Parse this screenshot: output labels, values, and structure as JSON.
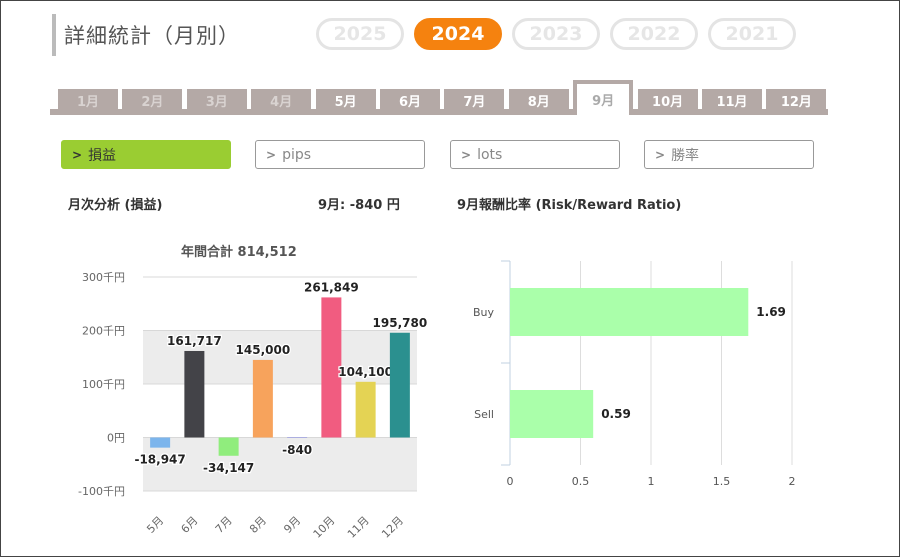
{
  "header": {
    "title": "詳細統計（月別）"
  },
  "years": [
    {
      "label": "2025",
      "active": false
    },
    {
      "label": "2024",
      "active": true
    },
    {
      "label": "2023",
      "active": false
    },
    {
      "label": "2022",
      "active": false
    },
    {
      "label": "2021",
      "active": false
    }
  ],
  "months": [
    {
      "label": "1月",
      "state": "dim"
    },
    {
      "label": "2月",
      "state": "dim"
    },
    {
      "label": "3月",
      "state": "dim"
    },
    {
      "label": "4月",
      "state": "dim"
    },
    {
      "label": "5月",
      "state": "normal"
    },
    {
      "label": "6月",
      "state": "normal"
    },
    {
      "label": "7月",
      "state": "normal"
    },
    {
      "label": "8月",
      "state": "normal"
    },
    {
      "label": "9月",
      "state": "active"
    },
    {
      "label": "10月",
      "state": "normal"
    },
    {
      "label": "11月",
      "state": "normal"
    },
    {
      "label": "12月",
      "state": "normal"
    }
  ],
  "metrics": [
    {
      "chevron": ">",
      "label": "損益",
      "active": true
    },
    {
      "chevron": ">",
      "label": "pips",
      "active": false
    },
    {
      "chevron": ">",
      "label": "lots",
      "active": false
    },
    {
      "chevron": ">",
      "label": "勝率",
      "active": false
    }
  ],
  "left_panel": {
    "heading": "月次分析 (損益)",
    "month_summary": "9月:  -840 円"
  },
  "right_panel": {
    "heading": "9月報酬比率 (Risk/Reward Ratio)"
  },
  "chart_data": [
    {
      "type": "bar",
      "title": "年間合計 814,512",
      "categories": [
        "5月",
        "6月",
        "7月",
        "8月",
        "9月",
        "10月",
        "11月",
        "12月"
      ],
      "values": [
        -18947,
        161717,
        -34147,
        145000,
        -840,
        261849,
        104100,
        195780
      ],
      "value_labels": [
        "-18,947",
        "161,717",
        "-34,147",
        "145,000",
        "-840",
        "261,849",
        "104,100",
        "195,780"
      ],
      "colors": [
        "#7cb5ec",
        "#434348",
        "#90ed7d",
        "#f7a35c",
        "#8085e9",
        "#f15c80",
        "#e4d354",
        "#2b908f"
      ],
      "ylim": [
        -100000,
        300000
      ],
      "yticks": [
        300000,
        200000,
        100000,
        0,
        -100000
      ],
      "ytick_labels": [
        "300千円",
        "200千円",
        "100千円",
        "0円",
        "-100千円"
      ],
      "grid": true,
      "plot_bands": [
        [
          100000,
          200000
        ],
        [
          -100000,
          0
        ]
      ]
    },
    {
      "type": "bar",
      "orientation": "horizontal",
      "categories": [
        "Buy",
        "Sell"
      ],
      "values": [
        1.69,
        0.59
      ],
      "value_labels": [
        "1.69",
        "0.59"
      ],
      "color": "#aaffaa",
      "xlim": [
        0,
        2
      ],
      "xticks": [
        0,
        0.5,
        1,
        1.5,
        2
      ],
      "xtick_labels": [
        "0",
        "0.5",
        "1",
        "1.5",
        "2"
      ],
      "grid": true
    }
  ]
}
